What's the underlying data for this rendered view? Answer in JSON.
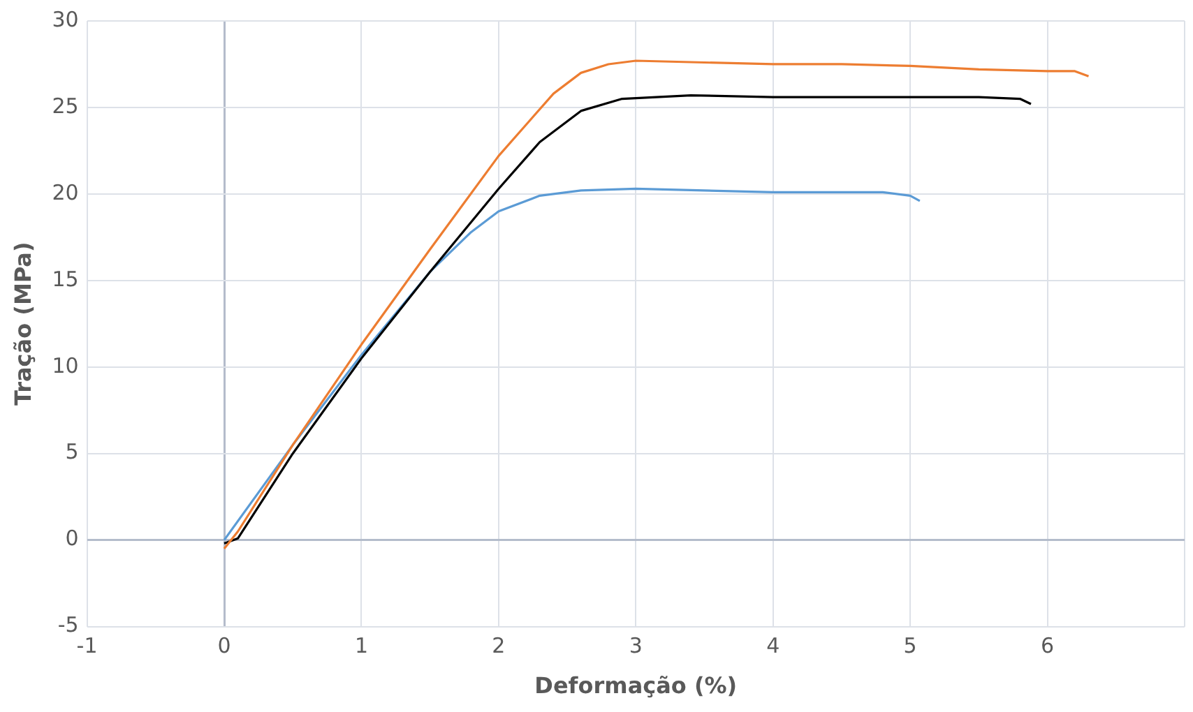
{
  "chart_data": {
    "type": "line",
    "xlabel": "Deformação (%)",
    "ylabel": "Tração (MPa)",
    "xlim": [
      -1,
      7
    ],
    "xticks": [
      -1,
      0,
      1,
      2,
      3,
      4,
      5,
      6,
      {
        "value": 7,
        "label": null
      }
    ],
    "ylim": [
      -5,
      30
    ],
    "yticks": [
      -5,
      0,
      5,
      10,
      15,
      20,
      25,
      30
    ],
    "grid": true,
    "marker": "none",
    "line_style": "solid",
    "series": [
      {
        "color": "#ed7d31",
        "x": [
          0,
          0.1,
          0.5,
          1,
          1.5,
          2,
          2.2,
          2.4,
          2.6,
          2.8,
          3,
          3.5,
          4,
          4.5,
          5,
          5.5,
          6,
          6.2,
          6.3
        ],
        "values": [
          -0.5,
          0.5,
          5.5,
          11.3,
          16.8,
          22.2,
          24,
          25.8,
          27,
          27.5,
          27.7,
          27.6,
          27.5,
          27.5,
          27.4,
          27.2,
          27.1,
          27.1,
          26.8
        ]
      },
      {
        "color": "#000000",
        "x": [
          0,
          0.1,
          0.5,
          1,
          1.5,
          2,
          2.3,
          2.6,
          2.9,
          3.4,
          4,
          4.5,
          5,
          5.5,
          5.8,
          5.88
        ],
        "values": [
          -0.2,
          0.1,
          5,
          10.5,
          15.5,
          20.3,
          23,
          24.8,
          25.5,
          25.7,
          25.6,
          25.6,
          25.6,
          25.6,
          25.5,
          25.2
        ]
      },
      {
        "color": "#5b9bd5",
        "x": [
          0,
          0.5,
          1,
          1.5,
          1.8,
          2,
          2.3,
          2.6,
          3,
          3.5,
          4,
          4.5,
          4.8,
          5,
          5.07
        ],
        "values": [
          0,
          5.5,
          10.7,
          15.5,
          17.8,
          19,
          19.9,
          20.2,
          20.3,
          20.2,
          20.1,
          20.1,
          20.1,
          19.9,
          19.6
        ]
      }
    ]
  }
}
